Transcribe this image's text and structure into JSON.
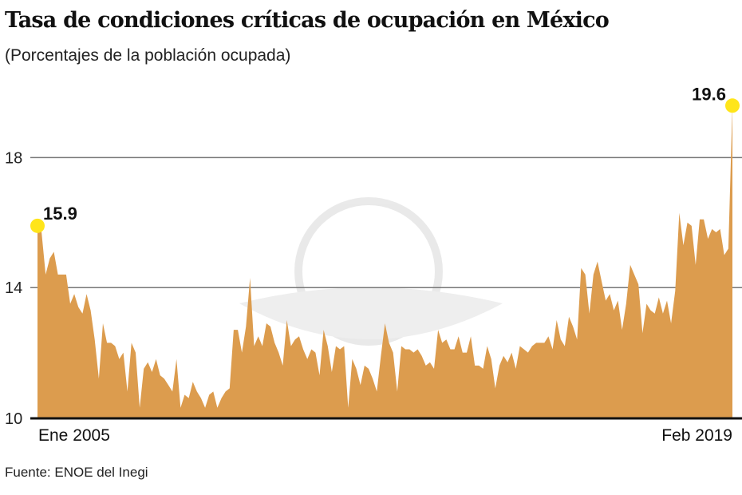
{
  "chart_data": {
    "type": "area",
    "title": "Tasa de condiciones críticas de ocupación en México",
    "subtitle": "(Porcentajes de la población ocupada)",
    "source": "Fuente: ENOE del Inegi",
    "xlabel": "",
    "ylabel": "",
    "x_unit": "months since Ene 2005",
    "x_range": [
      0,
      170
    ],
    "ylim": [
      10,
      20
    ],
    "yticks": [
      10,
      14,
      18
    ],
    "ytick_labels": [
      "10",
      "14",
      "18"
    ],
    "xtick_labels": {
      "start": "Ene 2005",
      "end": "Feb 2019"
    },
    "grid": true,
    "fill_color": "#DC9C4E",
    "highlight_color": "#FFE51A",
    "annotations": [
      {
        "label": "15.9",
        "x": 0,
        "y": 15.9
      },
      {
        "label": "19.6",
        "x": 170,
        "y": 19.6
      }
    ],
    "points": [
      [
        0,
        15.9
      ],
      [
        1,
        15.7
      ],
      [
        2,
        14.4
      ],
      [
        3,
        14.9
      ],
      [
        4,
        15.1
      ],
      [
        5,
        14.4
      ],
      [
        6,
        14.4
      ],
      [
        7,
        14.4
      ],
      [
        8,
        13.5
      ],
      [
        9,
        13.8
      ],
      [
        10,
        13.4
      ],
      [
        11,
        13.2
      ],
      [
        12,
        13.8
      ],
      [
        13,
        13.3
      ],
      [
        14,
        12.4
      ],
      [
        15,
        11.2
      ],
      [
        16,
        12.9
      ],
      [
        17,
        12.3
      ],
      [
        18,
        12.3
      ],
      [
        19,
        12.2
      ],
      [
        20,
        11.8
      ],
      [
        21,
        12.0
      ],
      [
        22,
        10.8
      ],
      [
        23,
        12.3
      ],
      [
        24,
        12.0
      ],
      [
        25,
        10.3
      ],
      [
        26,
        11.5
      ],
      [
        27,
        11.7
      ],
      [
        28,
        11.4
      ],
      [
        29,
        11.8
      ],
      [
        30,
        11.3
      ],
      [
        31,
        11.2
      ],
      [
        32,
        11.0
      ],
      [
        33,
        10.8
      ],
      [
        34,
        11.8
      ],
      [
        35,
        10.3
      ],
      [
        36,
        10.7
      ],
      [
        37,
        10.6
      ],
      [
        38,
        11.1
      ],
      [
        39,
        10.8
      ],
      [
        40,
        10.6
      ],
      [
        41,
        10.3
      ],
      [
        42,
        10.7
      ],
      [
        43,
        10.8
      ],
      [
        44,
        10.3
      ],
      [
        45,
        10.6
      ],
      [
        46,
        10.8
      ],
      [
        47,
        10.9
      ],
      [
        48,
        12.7
      ],
      [
        49,
        12.7
      ],
      [
        50,
        12.0
      ],
      [
        51,
        12.8
      ],
      [
        52,
        14.3
      ],
      [
        53,
        12.2
      ],
      [
        54,
        12.5
      ],
      [
        55,
        12.2
      ],
      [
        56,
        12.9
      ],
      [
        57,
        12.8
      ],
      [
        58,
        12.3
      ],
      [
        59,
        12.0
      ],
      [
        60,
        11.6
      ],
      [
        61,
        13.0
      ],
      [
        62,
        12.2
      ],
      [
        63,
        12.4
      ],
      [
        64,
        12.5
      ],
      [
        65,
        12.1
      ],
      [
        66,
        11.8
      ],
      [
        67,
        12.1
      ],
      [
        68,
        12.0
      ],
      [
        69,
        11.3
      ],
      [
        70,
        12.7
      ],
      [
        71,
        12.2
      ],
      [
        72,
        11.4
      ],
      [
        73,
        12.2
      ],
      [
        74,
        12.1
      ],
      [
        75,
        12.2
      ],
      [
        76,
        10.3
      ],
      [
        77,
        11.8
      ],
      [
        78,
        11.5
      ],
      [
        79,
        11.0
      ],
      [
        80,
        11.6
      ],
      [
        81,
        11.5
      ],
      [
        82,
        11.2
      ],
      [
        83,
        10.8
      ],
      [
        84,
        11.9
      ],
      [
        85,
        12.9
      ],
      [
        86,
        12.3
      ],
      [
        87,
        12.0
      ],
      [
        88,
        10.8
      ],
      [
        89,
        12.2
      ],
      [
        90,
        12.1
      ],
      [
        91,
        12.1
      ],
      [
        92,
        12.0
      ],
      [
        93,
        12.1
      ],
      [
        94,
        11.9
      ],
      [
        95,
        11.6
      ],
      [
        96,
        11.7
      ],
      [
        97,
        11.5
      ],
      [
        98,
        12.7
      ],
      [
        99,
        12.3
      ],
      [
        100,
        12.4
      ],
      [
        101,
        12.1
      ],
      [
        102,
        12.1
      ],
      [
        103,
        12.5
      ],
      [
        104,
        12.0
      ],
      [
        105,
        12.0
      ],
      [
        106,
        12.5
      ],
      [
        107,
        11.6
      ],
      [
        108,
        11.6
      ],
      [
        109,
        11.5
      ],
      [
        110,
        12.2
      ],
      [
        111,
        11.8
      ],
      [
        112,
        10.9
      ],
      [
        113,
        11.6
      ],
      [
        114,
        11.9
      ],
      [
        115,
        11.7
      ],
      [
        116,
        12.0
      ],
      [
        117,
        11.5
      ],
      [
        118,
        12.2
      ],
      [
        119,
        12.1
      ],
      [
        120,
        12.0
      ],
      [
        121,
        12.2
      ],
      [
        122,
        12.3
      ],
      [
        123,
        12.3
      ],
      [
        124,
        12.3
      ],
      [
        125,
        12.5
      ],
      [
        126,
        12.1
      ],
      [
        127,
        13.0
      ],
      [
        128,
        12.4
      ],
      [
        129,
        12.2
      ],
      [
        130,
        13.1
      ],
      [
        131,
        12.8
      ],
      [
        132,
        12.4
      ],
      [
        133,
        14.6
      ],
      [
        134,
        14.4
      ],
      [
        135,
        13.2
      ],
      [
        136,
        14.4
      ],
      [
        137,
        14.8
      ],
      [
        138,
        14.2
      ],
      [
        139,
        13.6
      ],
      [
        140,
        13.8
      ],
      [
        141,
        13.3
      ],
      [
        142,
        13.6
      ],
      [
        143,
        12.7
      ],
      [
        144,
        13.5
      ],
      [
        145,
        14.7
      ],
      [
        146,
        14.4
      ],
      [
        147,
        14.1
      ],
      [
        148,
        12.6
      ],
      [
        149,
        13.5
      ],
      [
        150,
        13.3
      ],
      [
        151,
        13.2
      ],
      [
        152,
        13.7
      ],
      [
        153,
        13.2
      ],
      [
        154,
        13.6
      ],
      [
        155,
        12.9
      ],
      [
        156,
        13.9
      ],
      [
        157,
        16.3
      ],
      [
        158,
        15.3
      ],
      [
        159,
        16.0
      ],
      [
        160,
        15.9
      ],
      [
        161,
        14.7
      ],
      [
        162,
        16.1
      ],
      [
        163,
        16.1
      ],
      [
        164,
        15.5
      ],
      [
        165,
        15.8
      ],
      [
        166,
        15.7
      ],
      [
        167,
        15.8
      ],
      [
        168,
        15.0
      ],
      [
        169,
        15.2
      ],
      [
        170,
        19.6
      ]
    ]
  }
}
